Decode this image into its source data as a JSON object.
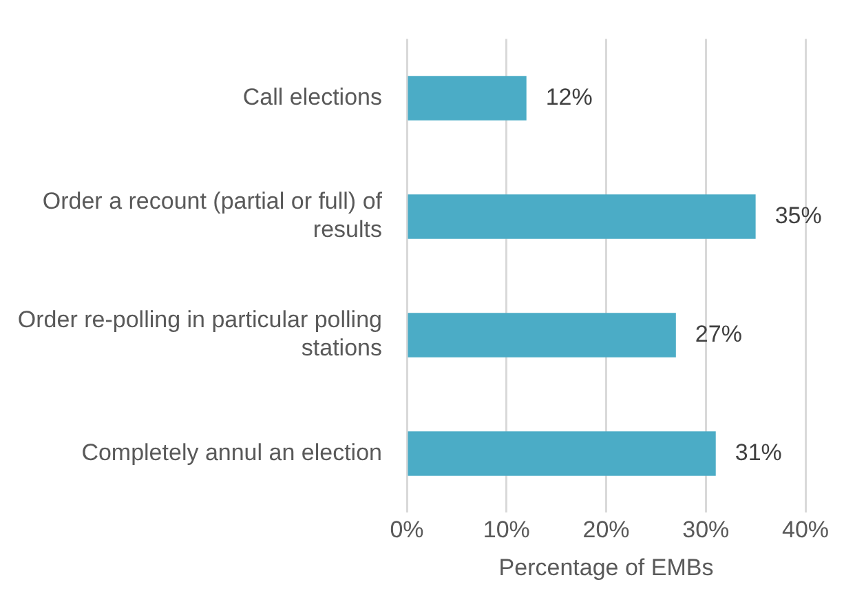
{
  "chart_data": {
    "type": "bar",
    "orientation": "horizontal",
    "xlabel": "Percentage of EMBs",
    "categories": [
      "Call elections",
      "Order a recount (partial or full) of results",
      "Order re-polling in particular polling stations",
      "Completely annul an election"
    ],
    "values": [
      12,
      35,
      27,
      31
    ],
    "color": "#4bacc6",
    "value_labels": [
      "12%",
      "35%",
      "27%",
      "31%"
    ],
    "xlim": [
      0,
      40
    ],
    "xticks": [
      {
        "value": 0,
        "label": "0%"
      },
      {
        "value": 10,
        "label": "10%"
      },
      {
        "value": 20,
        "label": "20%"
      },
      {
        "value": 30,
        "label": "30%"
      },
      {
        "value": 40,
        "label": "40%"
      }
    ],
    "grid": "x",
    "legend": false
  }
}
